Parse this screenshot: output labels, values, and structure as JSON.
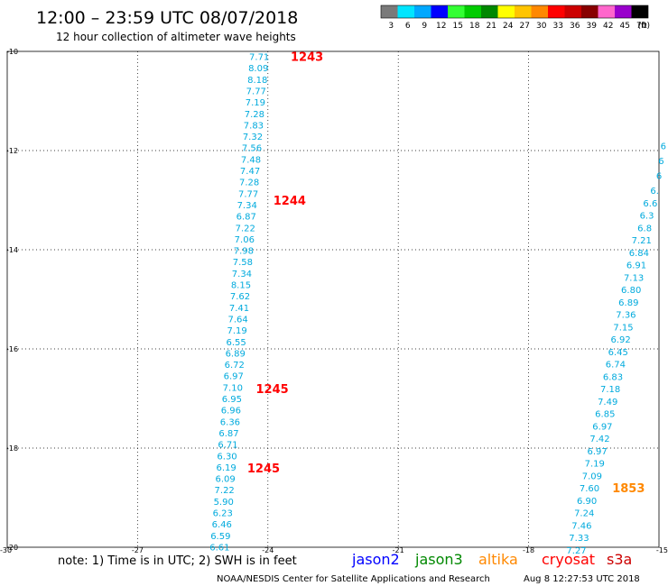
{
  "header": {
    "title": "12:00 – 23:59 UTC 08/07/2018",
    "subtitle": "12 hour collection of altimeter wave heights"
  },
  "color_scale": {
    "labels": [
      "3",
      "6",
      "9",
      "12",
      "15",
      "18",
      "21",
      "24",
      "27",
      "30",
      "33",
      "36",
      "39",
      "42",
      "45",
      "70"
    ],
    "unit": "(ft)",
    "colors": [
      "#7a7a7a",
      "#00e5ff",
      "#00a8ff",
      "#0000ff",
      "#33ff33",
      "#00cc00",
      "#008800",
      "#ffff00",
      "#ffc400",
      "#ff8800",
      "#ff0000",
      "#cc0000",
      "#880000",
      "#ff66cc",
      "#9900cc",
      "#000000"
    ]
  },
  "footer": {
    "note": "note: 1) Time is in UTC; 2) SWH is in feet",
    "satellites": [
      {
        "name": "jason2",
        "color": "#0000ff"
      },
      {
        "name": "jason3",
        "color": "#008800"
      },
      {
        "name": "altika",
        "color": "#ff8800"
      },
      {
        "name": "cryosat",
        "color": "#ff0000"
      },
      {
        "name": "s3a",
        "color": "#cc0000"
      }
    ],
    "credit": "NOAA/NESDIS Center for Satellite Applications and Research",
    "timestamp": "Aug  8 12:27:53 UTC 2018"
  },
  "chart_data": {
    "type": "scatter",
    "title": "12:00 – 23:59 UTC 08/07/2018",
    "subtitle": "12 hour collection of altimeter wave heights",
    "xlabel": "",
    "ylabel": "",
    "xlim": [
      -30,
      -15
    ],
    "ylim": [
      -20,
      -10
    ],
    "xticks": [
      -30,
      -27,
      -24,
      -21,
      -18,
      -15
    ],
    "yticks": [
      -10,
      -12,
      -14,
      -16,
      -18,
      -20
    ],
    "grid": true,
    "value_color": "#00aadd",
    "series": [
      {
        "points": [
          {
            "x": -24.2,
            "y": -10.1,
            "v": "7.71"
          },
          {
            "x": -24.22,
            "y": -10.33,
            "v": "8.09"
          },
          {
            "x": -24.24,
            "y": -10.56,
            "v": "8.18"
          },
          {
            "x": -24.27,
            "y": -10.79,
            "v": "7.77"
          },
          {
            "x": -24.29,
            "y": -11.02,
            "v": "7.19"
          },
          {
            "x": -24.31,
            "y": -11.25,
            "v": "7.28"
          },
          {
            "x": -24.33,
            "y": -11.48,
            "v": "7.83"
          },
          {
            "x": -24.35,
            "y": -11.71,
            "v": "7.32"
          },
          {
            "x": -24.37,
            "y": -11.94,
            "v": "7.56"
          },
          {
            "x": -24.39,
            "y": -12.17,
            "v": "7.48"
          },
          {
            "x": -24.41,
            "y": -12.4,
            "v": "7.47"
          },
          {
            "x": -24.43,
            "y": -12.63,
            "v": "7.28"
          },
          {
            "x": -24.45,
            "y": -12.86,
            "v": "7.77"
          },
          {
            "x": -24.48,
            "y": -13.09,
            "v": "7.34"
          },
          {
            "x": -24.5,
            "y": -13.32,
            "v": "6.87"
          },
          {
            "x": -24.52,
            "y": -13.55,
            "v": "7.22"
          },
          {
            "x": -24.54,
            "y": -13.78,
            "v": "7.06"
          },
          {
            "x": -24.56,
            "y": -14.01,
            "v": "7.98"
          },
          {
            "x": -24.58,
            "y": -14.24,
            "v": "7.58"
          },
          {
            "x": -24.6,
            "y": -14.47,
            "v": "7.34"
          },
          {
            "x": -24.62,
            "y": -14.7,
            "v": "8.15"
          },
          {
            "x": -24.64,
            "y": -14.93,
            "v": "7.62"
          },
          {
            "x": -24.66,
            "y": -15.16,
            "v": "7.41"
          },
          {
            "x": -24.69,
            "y": -15.39,
            "v": "7.64"
          },
          {
            "x": -24.71,
            "y": -15.62,
            "v": "7.19"
          },
          {
            "x": -24.73,
            "y": -15.85,
            "v": "6.55"
          },
          {
            "x": -24.75,
            "y": -16.08,
            "v": "6.89"
          },
          {
            "x": -24.77,
            "y": -16.31,
            "v": "6.72"
          },
          {
            "x": -24.79,
            "y": -16.54,
            "v": "6.97"
          },
          {
            "x": -24.81,
            "y": -16.77,
            "v": "7.10"
          },
          {
            "x": -24.83,
            "y": -17.0,
            "v": "6.95"
          },
          {
            "x": -24.85,
            "y": -17.23,
            "v": "6.96"
          },
          {
            "x": -24.87,
            "y": -17.46,
            "v": "6.36"
          },
          {
            "x": -24.9,
            "y": -17.69,
            "v": "6.87"
          },
          {
            "x": -24.92,
            "y": -17.92,
            "v": "6.71"
          },
          {
            "x": -24.94,
            "y": -18.15,
            "v": "6.30"
          },
          {
            "x": -24.96,
            "y": -18.38,
            "v": "6.19"
          },
          {
            "x": -24.98,
            "y": -18.61,
            "v": "6.09"
          },
          {
            "x": -25.0,
            "y": -18.84,
            "v": "7.22"
          },
          {
            "x": -25.02,
            "y": -19.07,
            "v": "5.90"
          },
          {
            "x": -25.04,
            "y": -19.3,
            "v": "6.23"
          },
          {
            "x": -25.06,
            "y": -19.53,
            "v": "6.46"
          },
          {
            "x": -25.09,
            "y": -19.76,
            "v": "6.59"
          },
          {
            "x": -25.11,
            "y": -19.99,
            "v": "6.61"
          }
        ]
      },
      {
        "points": [
          {
            "x": -14.9,
            "y": -11.9,
            "v": "6"
          },
          {
            "x": -14.95,
            "y": -12.2,
            "v": "6"
          },
          {
            "x": -15.0,
            "y": -12.5,
            "v": "6"
          },
          {
            "x": -15.1,
            "y": -12.8,
            "v": "6."
          },
          {
            "x": -15.2,
            "y": -13.05,
            "v": "6.6"
          },
          {
            "x": -15.28,
            "y": -13.3,
            "v": "6.3"
          },
          {
            "x": -15.33,
            "y": -13.55,
            "v": "6.8"
          },
          {
            "x": -15.4,
            "y": -13.8,
            "v": "7.21"
          },
          {
            "x": -15.46,
            "y": -14.05,
            "v": "6.84"
          },
          {
            "x": -15.52,
            "y": -14.3,
            "v": "6.91"
          },
          {
            "x": -15.58,
            "y": -14.55,
            "v": "7.13"
          },
          {
            "x": -15.64,
            "y": -14.8,
            "v": "6.80"
          },
          {
            "x": -15.7,
            "y": -15.05,
            "v": "6.89"
          },
          {
            "x": -15.76,
            "y": -15.3,
            "v": "7.36"
          },
          {
            "x": -15.82,
            "y": -15.55,
            "v": "7.15"
          },
          {
            "x": -15.88,
            "y": -15.8,
            "v": "6.92"
          },
          {
            "x": -15.94,
            "y": -16.05,
            "v": "6.45"
          },
          {
            "x": -16.0,
            "y": -16.3,
            "v": "6.74"
          },
          {
            "x": -16.06,
            "y": -16.55,
            "v": "6.83"
          },
          {
            "x": -16.12,
            "y": -16.8,
            "v": "7.18"
          },
          {
            "x": -16.18,
            "y": -17.05,
            "v": "7.49"
          },
          {
            "x": -16.24,
            "y": -17.3,
            "v": "6.85"
          },
          {
            "x": -16.3,
            "y": -17.55,
            "v": "6.97"
          },
          {
            "x": -16.36,
            "y": -17.8,
            "v": "7.42"
          },
          {
            "x": -16.42,
            "y": -18.05,
            "v": "6.97"
          },
          {
            "x": -16.48,
            "y": -18.3,
            "v": "7.19"
          },
          {
            "x": -16.54,
            "y": -18.55,
            "v": "7.09"
          },
          {
            "x": -16.6,
            "y": -18.8,
            "v": "7.60"
          },
          {
            "x": -16.66,
            "y": -19.05,
            "v": "6.90"
          },
          {
            "x": -16.72,
            "y": -19.3,
            "v": "7.24"
          },
          {
            "x": -16.78,
            "y": -19.55,
            "v": "7.46"
          },
          {
            "x": -16.84,
            "y": -19.8,
            "v": "7.33"
          },
          {
            "x": -16.9,
            "y": -20.05,
            "v": "7.27"
          }
        ]
      }
    ],
    "annotations": [
      {
        "text": "1243",
        "x": -23.1,
        "y": -10.1,
        "color": "#ff0000"
      },
      {
        "text": "1244",
        "x": -23.5,
        "y": -13.0,
        "color": "#ff0000"
      },
      {
        "text": "1245",
        "x": -23.9,
        "y": -16.8,
        "color": "#ff0000"
      },
      {
        "text": "1245",
        "x": -24.1,
        "y": -18.4,
        "color": "#ff0000"
      },
      {
        "text": "1853",
        "x": -15.7,
        "y": -18.8,
        "color": "#ff8800"
      }
    ]
  }
}
